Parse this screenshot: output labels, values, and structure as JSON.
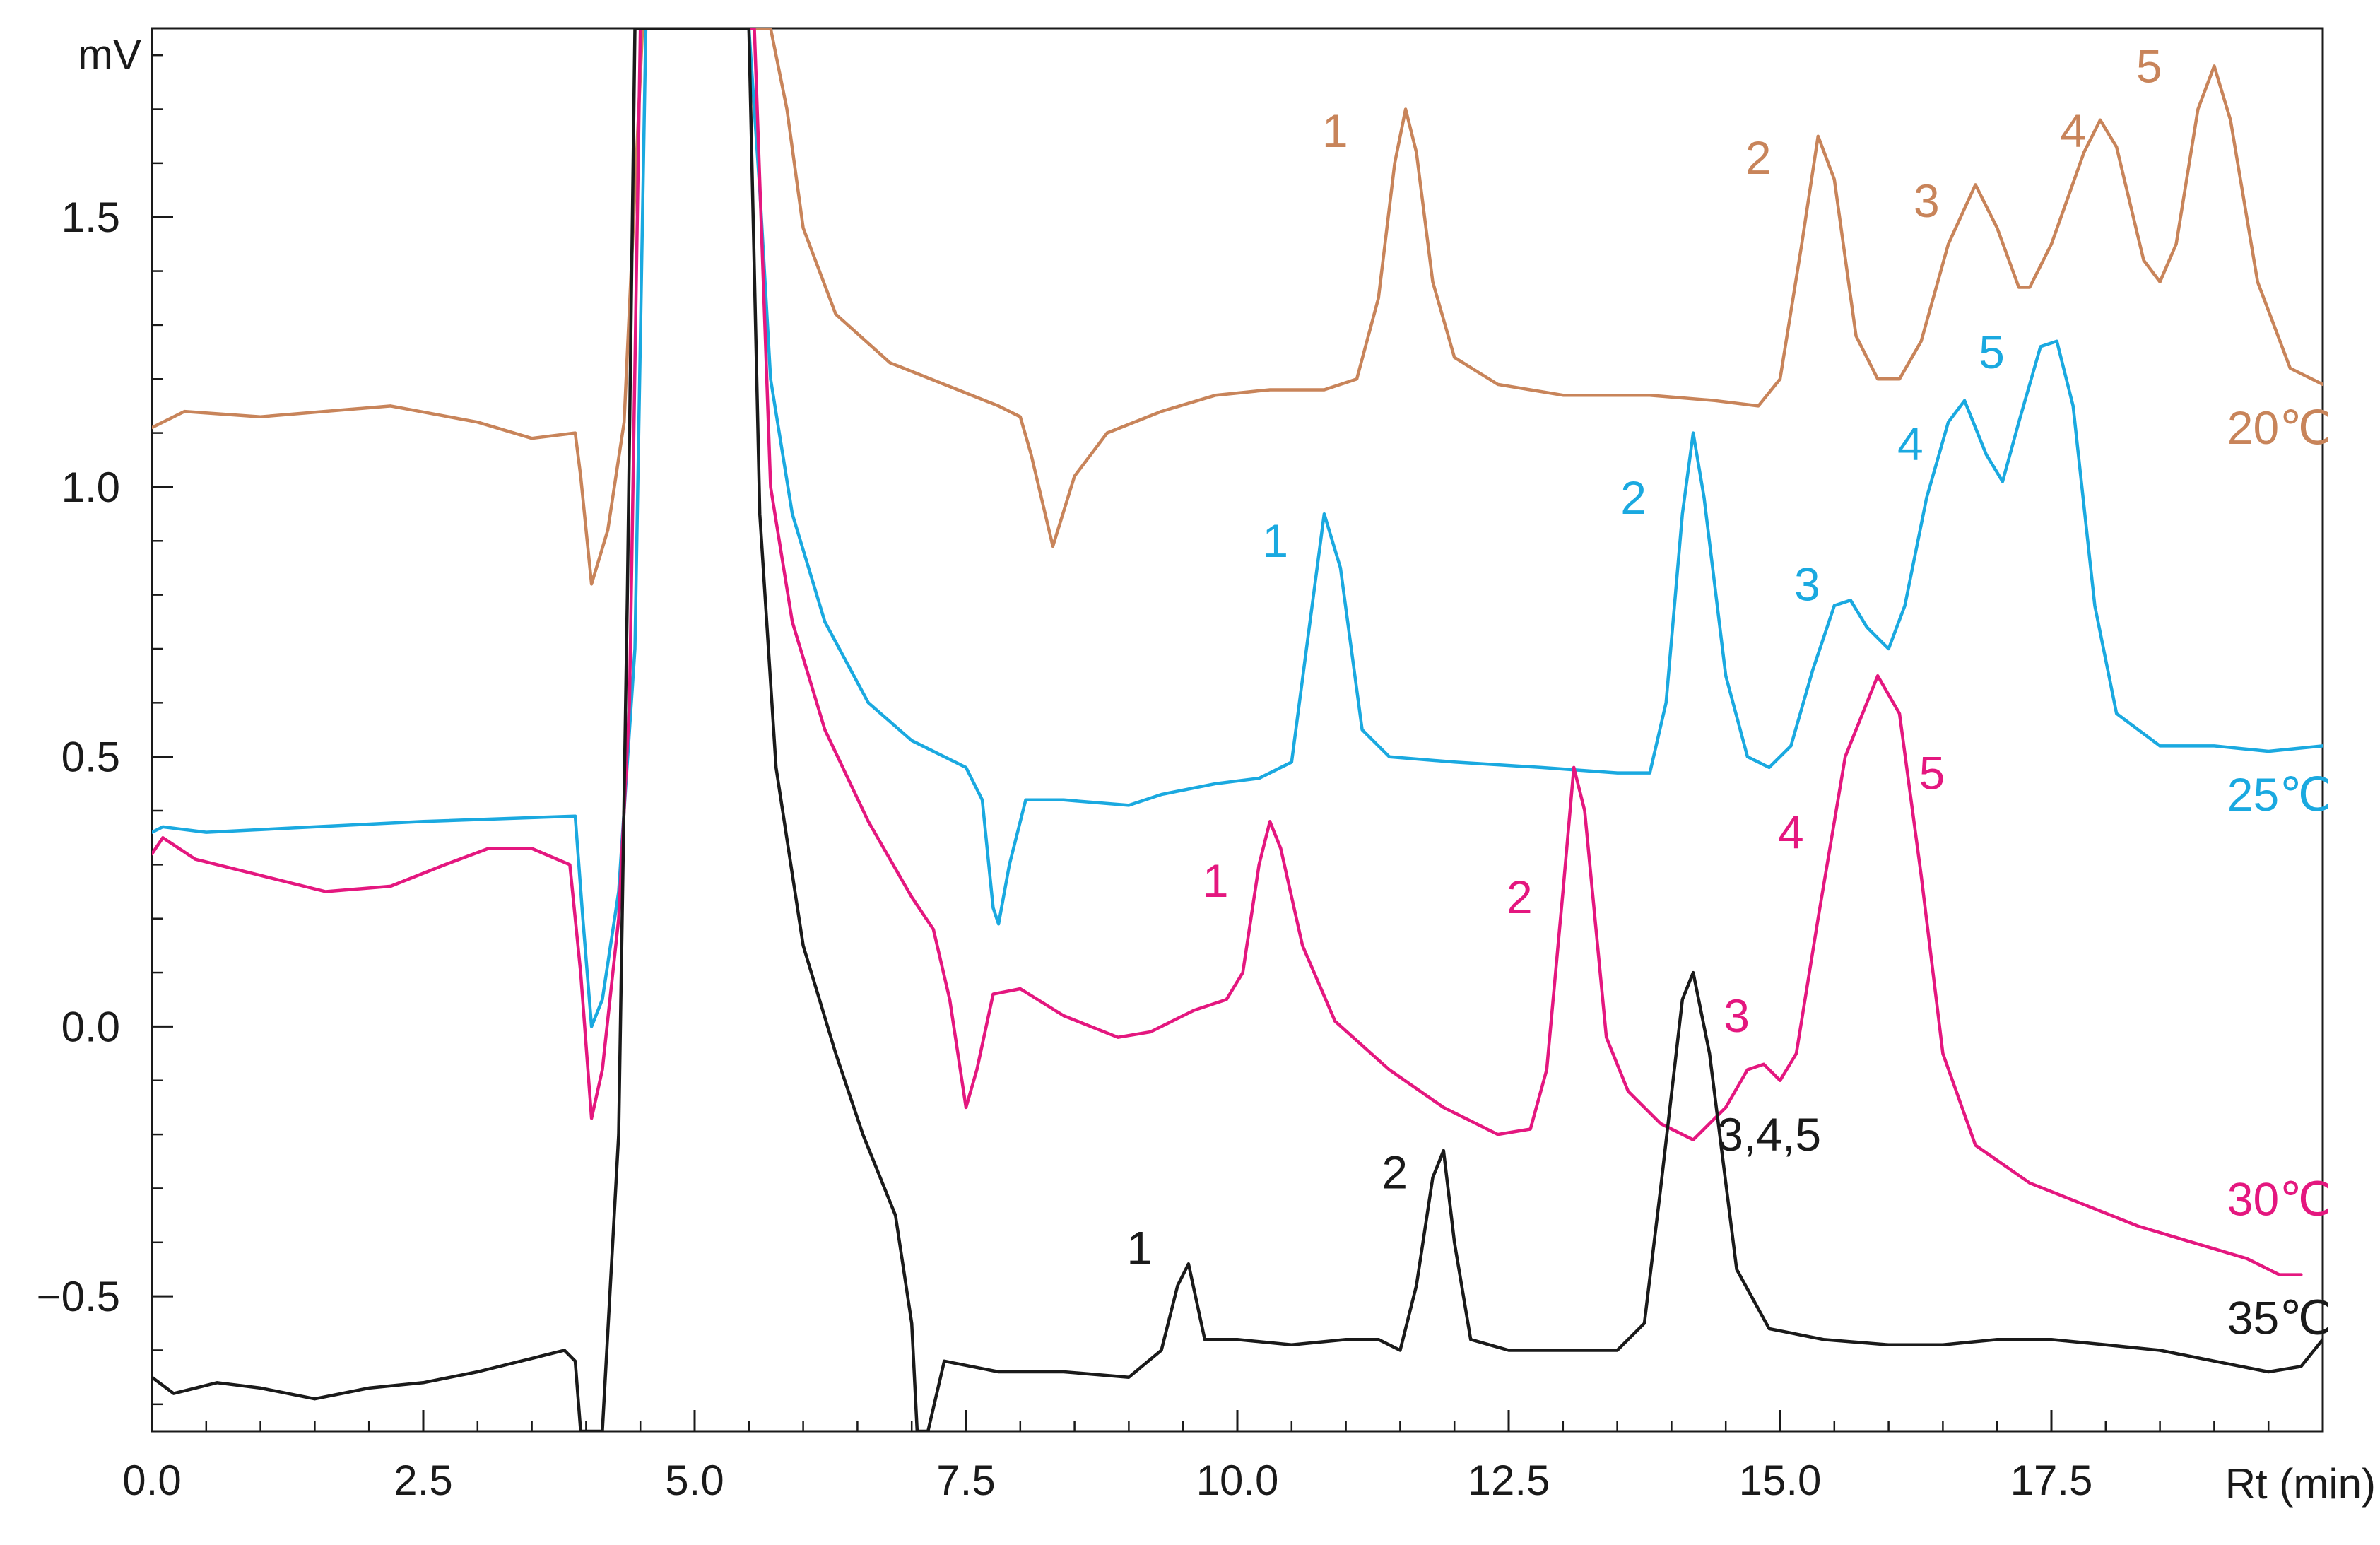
{
  "chart_data": {
    "type": "line",
    "title": "",
    "xlabel": "Rt (min)",
    "ylabel": "mV",
    "xlim": [
      0,
      20
    ],
    "ylim": [
      -0.75,
      1.85
    ],
    "x_ticks": [
      0,
      2.5,
      5,
      7.5,
      10,
      12.5,
      15,
      17.5
    ],
    "x_tick_labels": [
      "0.0",
      "2.5",
      "5.0",
      "7.5",
      "10.0",
      "12.5",
      "15.0",
      "17.5"
    ],
    "y_ticks": [
      1.5,
      1.0,
      0.5,
      0.0,
      -0.5
    ],
    "y_tick_labels": [
      "1.5",
      "1.0",
      "0.5",
      "0.0",
      "−0.5"
    ],
    "grid": false,
    "series": [
      {
        "name": "20℃",
        "color": "#c8845a",
        "points": [
          [
            0,
            1.11
          ],
          [
            0.3,
            1.14
          ],
          [
            1,
            1.13
          ],
          [
            2.2,
            1.15
          ],
          [
            3,
            1.12
          ],
          [
            3.5,
            1.09
          ],
          [
            3.9,
            1.1
          ],
          [
            3.95,
            1.02
          ],
          [
            4.05,
            0.82
          ],
          [
            4.2,
            0.92
          ],
          [
            4.35,
            1.12
          ],
          [
            4.45,
            1.55
          ],
          [
            4.52,
            1.95
          ],
          [
            5.7,
            1.95
          ],
          [
            5.85,
            1.7
          ],
          [
            6.0,
            1.48
          ],
          [
            6.3,
            1.32
          ],
          [
            6.8,
            1.23
          ],
          [
            7.3,
            1.19
          ],
          [
            7.8,
            1.15
          ],
          [
            8.0,
            1.13
          ],
          [
            8.1,
            1.06
          ],
          [
            8.3,
            0.89
          ],
          [
            8.5,
            1.02
          ],
          [
            8.8,
            1.1
          ],
          [
            9.3,
            1.14
          ],
          [
            9.8,
            1.17
          ],
          [
            10.3,
            1.18
          ],
          [
            10.8,
            1.18
          ],
          [
            11.1,
            1.2
          ],
          [
            11.3,
            1.35
          ],
          [
            11.45,
            1.6
          ],
          [
            11.55,
            1.7
          ],
          [
            11.65,
            1.62
          ],
          [
            11.8,
            1.38
          ],
          [
            12.0,
            1.24
          ],
          [
            12.4,
            1.19
          ],
          [
            13.0,
            1.17
          ],
          [
            13.8,
            1.17
          ],
          [
            14.4,
            1.16
          ],
          [
            14.8,
            1.15
          ],
          [
            15.0,
            1.2
          ],
          [
            15.2,
            1.45
          ],
          [
            15.35,
            1.65
          ],
          [
            15.5,
            1.57
          ],
          [
            15.7,
            1.28
          ],
          [
            15.9,
            1.2
          ],
          [
            16.1,
            1.2
          ],
          [
            16.3,
            1.27
          ],
          [
            16.55,
            1.45
          ],
          [
            16.8,
            1.56
          ],
          [
            17.0,
            1.48
          ],
          [
            17.2,
            1.37
          ],
          [
            17.3,
            1.37
          ],
          [
            17.5,
            1.45
          ],
          [
            17.8,
            1.62
          ],
          [
            17.95,
            1.68
          ],
          [
            18.1,
            1.63
          ],
          [
            18.35,
            1.42
          ],
          [
            18.5,
            1.38
          ],
          [
            18.65,
            1.45
          ],
          [
            18.85,
            1.7
          ],
          [
            19.0,
            1.78
          ],
          [
            19.15,
            1.68
          ],
          [
            19.4,
            1.38
          ],
          [
            19.7,
            1.22
          ],
          [
            20,
            1.19
          ]
        ]
      },
      {
        "name": "25℃",
        "color": "#1aa9e0",
        "points": [
          [
            0,
            0.36
          ],
          [
            0.1,
            0.37
          ],
          [
            0.5,
            0.36
          ],
          [
            1.5,
            0.37
          ],
          [
            2.5,
            0.38
          ],
          [
            3.9,
            0.39
          ],
          [
            3.97,
            0.2
          ],
          [
            4.05,
            0.0
          ],
          [
            4.15,
            0.05
          ],
          [
            4.3,
            0.25
          ],
          [
            4.45,
            0.7
          ],
          [
            4.55,
            1.95
          ],
          [
            5.5,
            1.95
          ],
          [
            5.6,
            1.55
          ],
          [
            5.7,
            1.2
          ],
          [
            5.9,
            0.95
          ],
          [
            6.2,
            0.75
          ],
          [
            6.6,
            0.6
          ],
          [
            7.0,
            0.53
          ],
          [
            7.5,
            0.48
          ],
          [
            7.65,
            0.42
          ],
          [
            7.75,
            0.22
          ],
          [
            7.8,
            0.19
          ],
          [
            7.9,
            0.3
          ],
          [
            8.05,
            0.42
          ],
          [
            8.4,
            0.42
          ],
          [
            9.0,
            0.41
          ],
          [
            9.3,
            0.43
          ],
          [
            9.8,
            0.45
          ],
          [
            10.2,
            0.46
          ],
          [
            10.5,
            0.49
          ],
          [
            10.65,
            0.72
          ],
          [
            10.8,
            0.95
          ],
          [
            10.95,
            0.85
          ],
          [
            11.15,
            0.55
          ],
          [
            11.4,
            0.5
          ],
          [
            12.0,
            0.49
          ],
          [
            12.8,
            0.48
          ],
          [
            13.5,
            0.47
          ],
          [
            13.8,
            0.47
          ],
          [
            13.95,
            0.6
          ],
          [
            14.1,
            0.95
          ],
          [
            14.2,
            1.1
          ],
          [
            14.3,
            0.98
          ],
          [
            14.5,
            0.65
          ],
          [
            14.7,
            0.5
          ],
          [
            14.9,
            0.48
          ],
          [
            15.1,
            0.52
          ],
          [
            15.3,
            0.66
          ],
          [
            15.5,
            0.78
          ],
          [
            15.65,
            0.79
          ],
          [
            15.8,
            0.74
          ],
          [
            16.0,
            0.7
          ],
          [
            16.15,
            0.78
          ],
          [
            16.35,
            0.98
          ],
          [
            16.55,
            1.12
          ],
          [
            16.7,
            1.16
          ],
          [
            16.9,
            1.06
          ],
          [
            17.05,
            1.01
          ],
          [
            17.2,
            1.12
          ],
          [
            17.4,
            1.26
          ],
          [
            17.55,
            1.27
          ],
          [
            17.7,
            1.15
          ],
          [
            17.9,
            0.78
          ],
          [
            18.1,
            0.58
          ],
          [
            18.5,
            0.52
          ],
          [
            19.0,
            0.52
          ],
          [
            19.5,
            0.51
          ],
          [
            20,
            0.52
          ]
        ]
      },
      {
        "name": "30℃",
        "color": "#e4177f",
        "points": [
          [
            0,
            0.32
          ],
          [
            0.1,
            0.35
          ],
          [
            0.4,
            0.31
          ],
          [
            1.0,
            0.28
          ],
          [
            1.6,
            0.25
          ],
          [
            2.2,
            0.26
          ],
          [
            2.7,
            0.3
          ],
          [
            3.1,
            0.33
          ],
          [
            3.5,
            0.33
          ],
          [
            3.85,
            0.3
          ],
          [
            3.95,
            0.1
          ],
          [
            4.05,
            -0.17
          ],
          [
            4.15,
            -0.08
          ],
          [
            4.3,
            0.2
          ],
          [
            4.4,
            0.6
          ],
          [
            4.5,
            1.95
          ],
          [
            5.55,
            1.95
          ],
          [
            5.7,
            1.0
          ],
          [
            5.9,
            0.75
          ],
          [
            6.2,
            0.55
          ],
          [
            6.6,
            0.38
          ],
          [
            7.0,
            0.24
          ],
          [
            7.2,
            0.18
          ],
          [
            7.35,
            0.05
          ],
          [
            7.5,
            -0.15
          ],
          [
            7.6,
            -0.08
          ],
          [
            7.75,
            0.06
          ],
          [
            8.0,
            0.07
          ],
          [
            8.4,
            0.02
          ],
          [
            8.9,
            -0.02
          ],
          [
            9.2,
            -0.01
          ],
          [
            9.6,
            0.03
          ],
          [
            9.9,
            0.05
          ],
          [
            10.05,
            0.1
          ],
          [
            10.2,
            0.3
          ],
          [
            10.3,
            0.38
          ],
          [
            10.4,
            0.33
          ],
          [
            10.6,
            0.15
          ],
          [
            10.9,
            0.01
          ],
          [
            11.4,
            -0.08
          ],
          [
            11.9,
            -0.15
          ],
          [
            12.4,
            -0.2
          ],
          [
            12.7,
            -0.19
          ],
          [
            12.85,
            -0.08
          ],
          [
            13.0,
            0.25
          ],
          [
            13.1,
            0.48
          ],
          [
            13.2,
            0.4
          ],
          [
            13.4,
            -0.02
          ],
          [
            13.6,
            -0.12
          ],
          [
            13.9,
            -0.18
          ],
          [
            14.2,
            -0.21
          ],
          [
            14.5,
            -0.15
          ],
          [
            14.7,
            -0.08
          ],
          [
            14.85,
            -0.07
          ],
          [
            15.0,
            -0.1
          ],
          [
            15.15,
            -0.05
          ],
          [
            15.35,
            0.2
          ],
          [
            15.6,
            0.5
          ],
          [
            15.9,
            0.65
          ],
          [
            16.1,
            0.58
          ],
          [
            16.3,
            0.28
          ],
          [
            16.5,
            -0.05
          ],
          [
            16.8,
            -0.22
          ],
          [
            17.3,
            -0.29
          ],
          [
            17.8,
            -0.33
          ],
          [
            18.3,
            -0.37
          ],
          [
            18.8,
            -0.4
          ],
          [
            19.3,
            -0.43
          ],
          [
            19.6,
            -0.46
          ],
          [
            19.8,
            -0.46
          ]
        ]
      },
      {
        "name": "35℃",
        "color": "#1a1a1a",
        "points": [
          [
            0,
            -0.65
          ],
          [
            0.2,
            -0.68
          ],
          [
            0.6,
            -0.66
          ],
          [
            1.0,
            -0.67
          ],
          [
            1.5,
            -0.69
          ],
          [
            2.0,
            -0.67
          ],
          [
            2.5,
            -0.66
          ],
          [
            3.0,
            -0.64
          ],
          [
            3.4,
            -0.62
          ],
          [
            3.8,
            -0.6
          ],
          [
            3.9,
            -0.62
          ],
          [
            3.95,
            -0.75
          ],
          [
            4.15,
            -0.75
          ],
          [
            4.3,
            -0.2
          ],
          [
            4.38,
            0.8
          ],
          [
            4.45,
            1.95
          ],
          [
            5.5,
            1.95
          ],
          [
            5.6,
            0.95
          ],
          [
            5.75,
            0.48
          ],
          [
            6.0,
            0.15
          ],
          [
            6.3,
            -0.05
          ],
          [
            6.55,
            -0.2
          ],
          [
            6.85,
            -0.35
          ],
          [
            7.0,
            -0.55
          ],
          [
            7.05,
            -0.75
          ],
          [
            7.15,
            -0.75
          ],
          [
            7.3,
            -0.62
          ],
          [
            7.8,
            -0.64
          ],
          [
            8.4,
            -0.64
          ],
          [
            9.0,
            -0.65
          ],
          [
            9.3,
            -0.6
          ],
          [
            9.45,
            -0.48
          ],
          [
            9.55,
            -0.44
          ],
          [
            9.7,
            -0.58
          ],
          [
            10.0,
            -0.58
          ],
          [
            10.5,
            -0.59
          ],
          [
            11.0,
            -0.58
          ],
          [
            11.3,
            -0.58
          ],
          [
            11.5,
            -0.6
          ],
          [
            11.65,
            -0.48
          ],
          [
            11.8,
            -0.28
          ],
          [
            11.9,
            -0.23
          ],
          [
            12.0,
            -0.4
          ],
          [
            12.15,
            -0.58
          ],
          [
            12.5,
            -0.6
          ],
          [
            13.0,
            -0.6
          ],
          [
            13.5,
            -0.6
          ],
          [
            13.75,
            -0.55
          ],
          [
            13.9,
            -0.3
          ],
          [
            14.1,
            0.05
          ],
          [
            14.2,
            0.1
          ],
          [
            14.35,
            -0.05
          ],
          [
            14.6,
            -0.45
          ],
          [
            14.9,
            -0.56
          ],
          [
            15.4,
            -0.58
          ],
          [
            16.0,
            -0.59
          ],
          [
            16.5,
            -0.59
          ],
          [
            17.0,
            -0.58
          ],
          [
            17.5,
            -0.58
          ],
          [
            18.0,
            -0.59
          ],
          [
            18.5,
            -0.6
          ],
          [
            19.0,
            -0.62
          ],
          [
            19.5,
            -0.64
          ],
          [
            19.8,
            -0.63
          ],
          [
            20,
            -0.58
          ]
        ]
      }
    ],
    "annotations": [
      {
        "text": "1",
        "series": 0,
        "x": 10.9,
        "y": 1.63
      },
      {
        "text": "2",
        "series": 0,
        "x": 14.8,
        "y": 1.58
      },
      {
        "text": "3",
        "series": 0,
        "x": 16.35,
        "y": 1.5
      },
      {
        "text": "4",
        "series": 0,
        "x": 17.7,
        "y": 1.63
      },
      {
        "text": "5",
        "series": 0,
        "x": 18.4,
        "y": 1.75
      },
      {
        "text": "20℃",
        "series": 0,
        "x": 19.6,
        "y": 1.08
      },
      {
        "text": "1",
        "series": 1,
        "x": 10.35,
        "y": 0.87
      },
      {
        "text": "2",
        "series": 1,
        "x": 13.65,
        "y": 0.95
      },
      {
        "text": "3",
        "series": 1,
        "x": 15.25,
        "y": 0.79
      },
      {
        "text": "4",
        "series": 1,
        "x": 16.2,
        "y": 1.05
      },
      {
        "text": "5",
        "series": 1,
        "x": 16.95,
        "y": 1.22
      },
      {
        "text": "25℃",
        "series": 1,
        "x": 19.6,
        "y": 0.4
      },
      {
        "text": "1",
        "series": 2,
        "x": 9.8,
        "y": 0.24
      },
      {
        "text": "2",
        "series": 2,
        "x": 12.6,
        "y": 0.21
      },
      {
        "text": "3",
        "series": 2,
        "x": 14.6,
        "y": -0.01
      },
      {
        "text": "4",
        "series": 2,
        "x": 15.1,
        "y": 0.33
      },
      {
        "text": "5",
        "series": 2,
        "x": 16.4,
        "y": 0.44
      },
      {
        "text": "30℃",
        "series": 2,
        "x": 19.6,
        "y": -0.35
      },
      {
        "text": "1",
        "series": 3,
        "x": 9.1,
        "y": -0.44
      },
      {
        "text": "2",
        "series": 3,
        "x": 11.45,
        "y": -0.3
      },
      {
        "text": "3,4,5",
        "series": 3,
        "x": 14.9,
        "y": -0.23
      },
      {
        "text": "35℃",
        "series": 3,
        "x": 19.6,
        "y": -0.57
      }
    ]
  }
}
